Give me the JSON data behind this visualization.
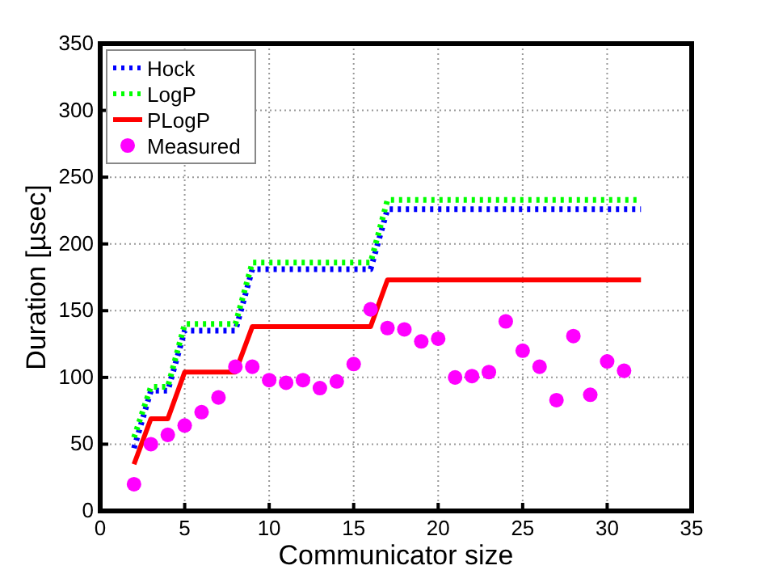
{
  "chart_data": {
    "type": "line",
    "xlabel": "Communicator size",
    "ylabel": "Duration [µsec]",
    "xlim": [
      0,
      35
    ],
    "ylim": [
      0,
      350
    ],
    "xticks": [
      0,
      5,
      10,
      15,
      20,
      25,
      30,
      35
    ],
    "yticks": [
      0,
      50,
      100,
      150,
      200,
      250,
      300,
      350
    ],
    "grid": true,
    "legend": "top left",
    "series": [
      {
        "name": "Hock",
        "color": "#0000ff",
        "line_style": "dotted",
        "x": [
          2,
          3,
          4,
          5,
          8,
          9,
          16,
          17,
          32
        ],
        "values": [
          47,
          90,
          90,
          135,
          135,
          181,
          181,
          226,
          226
        ]
      },
      {
        "name": "LogP",
        "color": "#00ff00",
        "line_style": "dotted",
        "x": [
          2,
          3,
          4,
          5,
          8,
          9,
          16,
          17,
          32
        ],
        "values": [
          55,
          93,
          93,
          140,
          140,
          186,
          186,
          233,
          233
        ]
      },
      {
        "name": "PLogP",
        "color": "#ff0000",
        "line_style": "solid",
        "x": [
          2,
          3,
          4,
          5,
          8,
          9,
          16,
          17,
          32
        ],
        "values": [
          35,
          69,
          69,
          104,
          104,
          138,
          138,
          173,
          173
        ]
      },
      {
        "name": "Measured",
        "type": "scatter",
        "color": "#ff00ff",
        "marker": "circle",
        "x": [
          2,
          3,
          4,
          5,
          6,
          7,
          8,
          9,
          10,
          11,
          12,
          13,
          14,
          15,
          16,
          17,
          18,
          19,
          20,
          21,
          22,
          23,
          24,
          25,
          26,
          27,
          28,
          29,
          30,
          31
        ],
        "values": [
          20,
          50,
          57,
          64,
          74,
          85,
          108,
          108,
          98,
          96,
          98,
          92,
          97,
          110,
          151,
          137,
          136,
          127,
          129,
          100,
          101,
          104,
          142,
          120,
          108,
          83,
          131,
          87,
          112,
          105
        ]
      }
    ]
  }
}
